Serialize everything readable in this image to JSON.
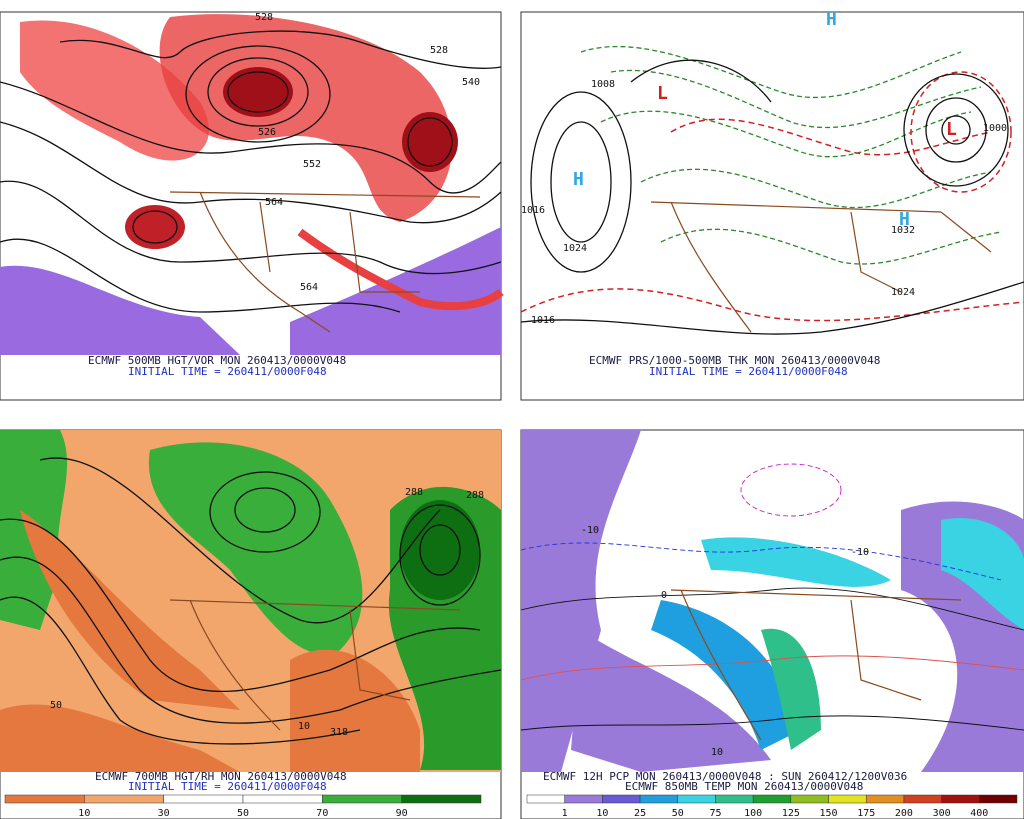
{
  "panels": [
    {
      "caption": "ECMWF 500MB HGT/VOR MON 260413/0000V048",
      "initial_time": "INITIAL TIME = 260411/0000F048",
      "contour_labels": [
        "528",
        "540",
        "552",
        "564",
        "528",
        "526",
        "564"
      ]
    },
    {
      "caption": "ECMWF PRS/1000-500MB THK MON 260413/0000V048",
      "initial_time": "INITIAL TIME = 260411/0000F048",
      "contour_labels": [
        "1008",
        "1024",
        "1016",
        "1024",
        "1032",
        "1016",
        "1000"
      ],
      "pressure_centers": [
        "H",
        "H",
        "H",
        "L",
        "L"
      ]
    },
    {
      "caption": "ECMWF 700MB HGT/RH MON 260413/0000V048",
      "initial_time": "INITIAL TIME = 260411/0000F048",
      "contour_labels": [
        "288",
        "288",
        "318",
        "50",
        "10"
      ],
      "colorbar": {
        "labels": [
          10,
          30,
          50,
          70,
          90
        ],
        "colors": [
          "#e5783f",
          "#f2a66c",
          "#ffffff",
          "#ffffff",
          "#3aae3a",
          "#0e6e12"
        ]
      }
    },
    {
      "caption": "ECMWF 12H PCP MON 260413/0000V048 : SUN 260412/1200V036",
      "initial_time": "ECMWF 850MB TEMP MON 260413/0000V048",
      "contour_labels": [
        "-10",
        "0",
        "10",
        "-10"
      ],
      "colorbar": {
        "labels": [
          1,
          10,
          25,
          50,
          75,
          100,
          125,
          150,
          175,
          200,
          300,
          400
        ],
        "colors": [
          "#ffffff",
          "#9a7ad8",
          "#6a5ad8",
          "#1f9fe0",
          "#39d3e3",
          "#2fbf8a",
          "#1f9f2f",
          "#8fbf1f",
          "#e3e31f",
          "#e38f1f",
          "#d3401f",
          "#a31010",
          "#700000"
        ]
      }
    }
  ]
}
